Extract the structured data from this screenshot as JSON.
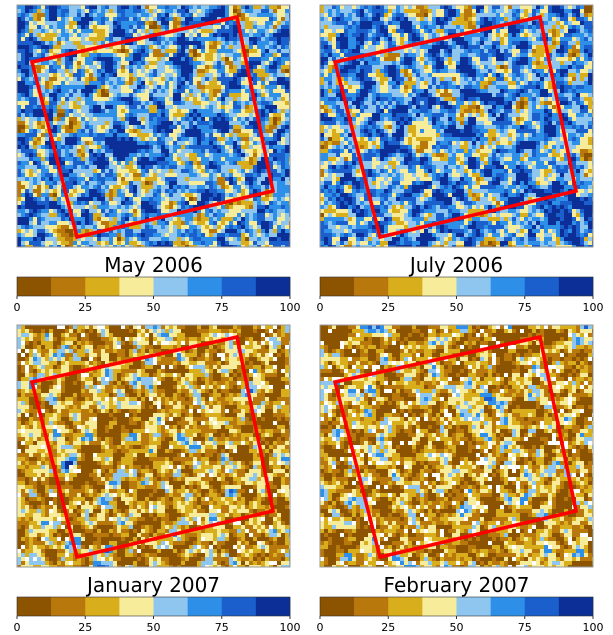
{
  "panels": [
    {
      "title": "May 2006"
    },
    {
      "title": "July 2006"
    },
    {
      "title": "January 2007"
    },
    {
      "title": "February 2007"
    }
  ],
  "colorbar": {
    "lim": [
      0,
      100
    ],
    "ticks": [
      0,
      25,
      50,
      75,
      100
    ],
    "colors": [
      "#8c5300",
      "#b8780b",
      "#d9ae1c",
      "#f7ec9a",
      "#8ec6f0",
      "#2d8fe8",
      "#1a5fcc",
      "#0b2f96"
    ]
  },
  "outline_color": "#ff0000"
}
